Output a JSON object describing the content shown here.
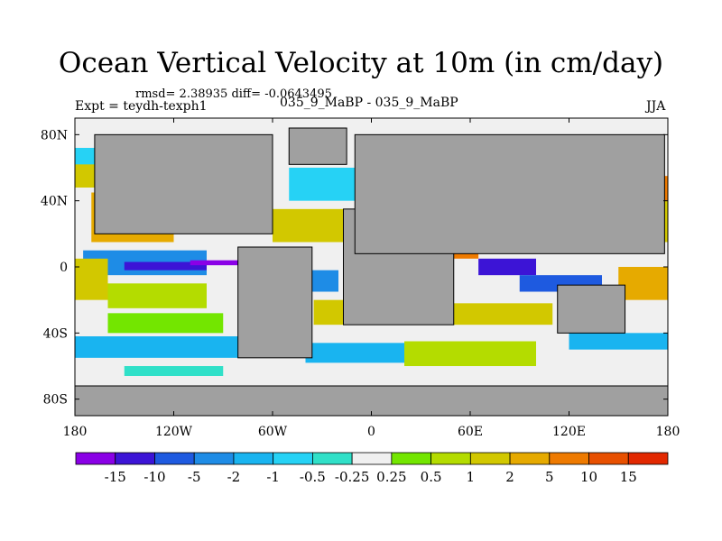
{
  "chart_data": {
    "type": "heatmap",
    "title": "Ocean Vertical Velocity at 10m (in cm/day)",
    "subtitle_stats": "rmsd= 2.38935 diff= -0.0643495",
    "experiment": "Expt = teydh-texph1",
    "center_label": "035_9_MaBP - 035_9_MaBP",
    "season": "JJA",
    "x_range": [
      -180,
      180
    ],
    "y_range": [
      -90,
      90
    ],
    "x_ticks": [
      {
        "value": -180,
        "label": "180"
      },
      {
        "value": -120,
        "label": "120W"
      },
      {
        "value": -60,
        "label": "60W"
      },
      {
        "value": 0,
        "label": "0"
      },
      {
        "value": 60,
        "label": "60E"
      },
      {
        "value": 120,
        "label": "120E"
      },
      {
        "value": 180,
        "label": "180"
      }
    ],
    "y_ticks": [
      {
        "value": 80,
        "label": "80N"
      },
      {
        "value": 40,
        "label": "40N"
      },
      {
        "value": 0,
        "label": "0"
      },
      {
        "value": -40,
        "label": "40S"
      },
      {
        "value": -80,
        "label": "80S"
      }
    ],
    "colorbar": {
      "labels": [
        "-15",
        "-10",
        "-5",
        "-2",
        "-1",
        "-0.5",
        "-0.25",
        "0.25",
        "0.5",
        "1",
        "2",
        "5",
        "10",
        "15"
      ],
      "colors": [
        "#8a00e6",
        "#3c14d6",
        "#1e5ae0",
        "#1e8ce6",
        "#19b4f0",
        "#26d2f5",
        "#30e0c8",
        "#f0f0f0",
        "#73e600",
        "#b4dc00",
        "#d2c800",
        "#e6aa00",
        "#ee7a00",
        "#e85000",
        "#e22800"
      ]
    },
    "land_color": "#a0a0a0",
    "regions": [
      {
        "lon": [
          -180,
          180
        ],
        "lat": [
          -90,
          90
        ],
        "cls": 7
      },
      {
        "lon": [
          -180,
          180
        ],
        "lat": [
          70,
          86
        ],
        "cls": 7
      },
      {
        "lon": [
          -180,
          -150
        ],
        "lat": [
          50,
          72
        ],
        "cls": 5
      },
      {
        "lon": [
          -170,
          -120
        ],
        "lat": [
          15,
          45
        ],
        "cls": 11
      },
      {
        "lon": [
          -140,
          -110
        ],
        "lat": [
          35,
          48
        ],
        "cls": 12
      },
      {
        "lon": [
          -180,
          -130
        ],
        "lat": [
          48,
          62
        ],
        "cls": 10
      },
      {
        "lon": [
          -175,
          -100
        ],
        "lat": [
          -5,
          10
        ],
        "cls": 3
      },
      {
        "lon": [
          -150,
          -100
        ],
        "lat": [
          -2,
          3
        ],
        "cls": 1
      },
      {
        "lon": [
          -110,
          -75
        ],
        "lat": [
          1,
          4
        ],
        "cls": 0
      },
      {
        "lon": [
          -180,
          -160
        ],
        "lat": [
          -20,
          5
        ],
        "cls": 10
      },
      {
        "lon": [
          -160,
          -100
        ],
        "lat": [
          -25,
          -10
        ],
        "cls": 9
      },
      {
        "lon": [
          -160,
          -90
        ],
        "lat": [
          -40,
          -28
        ],
        "cls": 8
      },
      {
        "lon": [
          -180,
          -60
        ],
        "lat": [
          -55,
          -42
        ],
        "cls": 4
      },
      {
        "lon": [
          -150,
          -90
        ],
        "lat": [
          -70,
          -60
        ],
        "cls": 6
      },
      {
        "lon": [
          -50,
          -10
        ],
        "lat": [
          40,
          60
        ],
        "cls": 5
      },
      {
        "lon": [
          -60,
          -10
        ],
        "lat": [
          15,
          35
        ],
        "cls": 10
      },
      {
        "lon": [
          -50,
          -20
        ],
        "lat": [
          -15,
          -2
        ],
        "cls": 3
      },
      {
        "lon": [
          -35,
          5
        ],
        "lat": [
          -35,
          -20
        ],
        "cls": 10
      },
      {
        "lon": [
          -40,
          20
        ],
        "lat": [
          -58,
          -46
        ],
        "cls": 4
      },
      {
        "lon": [
          20,
          100
        ],
        "lat": [
          -60,
          -45
        ],
        "cls": 9
      },
      {
        "lon": [
          40,
          110
        ],
        "lat": [
          -35,
          -22
        ],
        "cls": 10
      },
      {
        "lon": [
          45,
          65
        ],
        "lat": [
          5,
          20
        ],
        "cls": 12
      },
      {
        "lon": [
          65,
          100
        ],
        "lat": [
          -5,
          5
        ],
        "cls": 1
      },
      {
        "lon": [
          90,
          140
        ],
        "lat": [
          -15,
          -5
        ],
        "cls": 2
      },
      {
        "lon": [
          130,
          180
        ],
        "lat": [
          15,
          40
        ],
        "cls": 10
      },
      {
        "lon": [
          145,
          180
        ],
        "lat": [
          40,
          55
        ],
        "cls": 12
      },
      {
        "lon": [
          150,
          180
        ],
        "lat": [
          -20,
          0
        ],
        "cls": 11
      },
      {
        "lon": [
          120,
          180
        ],
        "lat": [
          -50,
          -40
        ],
        "cls": 4
      },
      {
        "lon": [
          -180,
          180
        ],
        "lat": [
          -72,
          -66
        ],
        "cls": 7
      }
    ],
    "land": [
      {
        "name": "North America",
        "lon": [
          -168,
          -60
        ],
        "lat": [
          20,
          80
        ]
      },
      {
        "name": "Greenland",
        "lon": [
          -50,
          -15
        ],
        "lat": [
          62,
          84
        ]
      },
      {
        "name": "South America",
        "lon": [
          -81,
          -36
        ],
        "lat": [
          -55,
          12
        ]
      },
      {
        "name": "Africa",
        "lon": [
          -17,
          50
        ],
        "lat": [
          -35,
          35
        ]
      },
      {
        "name": "Eurasia",
        "lon": [
          -10,
          178
        ],
        "lat": [
          8,
          80
        ]
      },
      {
        "name": "Australia",
        "lon": [
          113,
          154
        ],
        "lat": [
          -40,
          -11
        ]
      },
      {
        "name": "Antarctica",
        "lon": [
          -180,
          180
        ],
        "lat": [
          -90,
          -72
        ]
      }
    ]
  }
}
